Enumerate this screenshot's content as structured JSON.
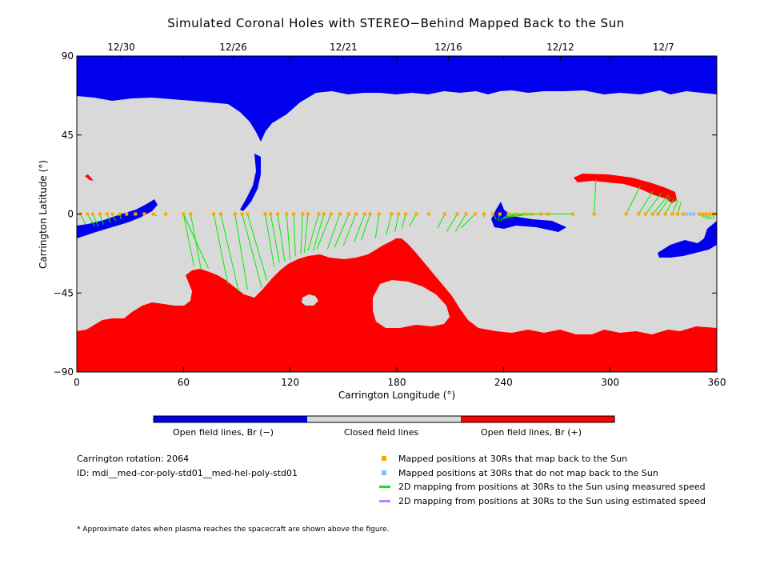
{
  "chart_data": {
    "type": "map",
    "title": "Simulated Coronal Holes with STEREO−Behind Mapped Back to the Sun",
    "xlabel": "Carrington Longitude (°)",
    "ylabel": "Carrington Latitude (°)",
    "xlim": [
      0,
      360
    ],
    "ylim": [
      -90,
      90
    ],
    "x_ticks": [
      "0",
      "60",
      "120",
      "180",
      "240",
      "300",
      "360"
    ],
    "y_ticks": [
      "90",
      "45",
      "0",
      "−45",
      "−90"
    ],
    "top_date_ticks": [
      {
        "lon": 25,
        "label": "12/30"
      },
      {
        "lon": 88,
        "label": "12/26"
      },
      {
        "lon": 150,
        "label": "12/21"
      },
      {
        "lon": 209,
        "label": "12/16"
      },
      {
        "lon": 272,
        "label": "12/12"
      },
      {
        "lon": 330,
        "label": "12/7"
      }
    ],
    "colors": {
      "open_negative": "#0000ee",
      "closed": "#d9d9d9",
      "open_positive": "#ff0000",
      "mapped": "#ffa500",
      "unmapped": "#87c0ff",
      "measured_speed": "#00ee00",
      "estimated_speed": "#c080ff"
    },
    "mapped_points_lon": [
      2,
      6,
      9,
      13,
      17,
      20,
      24,
      28,
      33,
      38,
      43,
      50,
      60,
      64,
      77,
      81,
      89,
      93,
      96,
      106,
      109,
      113,
      118,
      122,
      127,
      130,
      136,
      139,
      143,
      148,
      153,
      157,
      162,
      165,
      170,
      177,
      181,
      185,
      191,
      198,
      207,
      214,
      219,
      224,
      229,
      234,
      238,
      243,
      247,
      252,
      256,
      261,
      265,
      279,
      291,
      309,
      316,
      320,
      324,
      327,
      331,
      335,
      338,
      341,
      350,
      352,
      354,
      356,
      358,
      359
    ],
    "unmapped_points_lon": [
      343,
      345,
      347
    ],
    "mapping_lines": [
      {
        "from_lon": 2,
        "to_lon": 5,
        "to_lat": -6
      },
      {
        "from_lon": 6,
        "to_lon": 10,
        "to_lat": -7
      },
      {
        "from_lon": 9,
        "to_lon": 12,
        "to_lat": -7
      },
      {
        "from_lon": 13,
        "to_lon": 15,
        "to_lat": -6
      },
      {
        "from_lon": 17,
        "to_lon": 19,
        "to_lat": -5
      },
      {
        "from_lon": 20,
        "to_lon": 22,
        "to_lat": -4
      },
      {
        "from_lon": 24,
        "to_lon": 25,
        "to_lat": -3
      },
      {
        "from_lon": 43,
        "to_lon": 45,
        "to_lat": -1
      },
      {
        "from_lon": 60,
        "to_lon": 66,
        "to_lat": -30
      },
      {
        "from_lon": 64,
        "to_lon": 70,
        "to_lat": -32
      },
      {
        "from_lon": 60,
        "to_lon": 74,
        "to_lat": -31
      },
      {
        "from_lon": 77,
        "to_lon": 85,
        "to_lat": -40
      },
      {
        "from_lon": 81,
        "to_lon": 91,
        "to_lat": -44
      },
      {
        "from_lon": 89,
        "to_lon": 96,
        "to_lat": -43
      },
      {
        "from_lon": 93,
        "to_lon": 104,
        "to_lat": -42
      },
      {
        "from_lon": 96,
        "to_lon": 107,
        "to_lat": -38
      },
      {
        "from_lon": 106,
        "to_lon": 111,
        "to_lat": -30
      },
      {
        "from_lon": 109,
        "to_lon": 114,
        "to_lat": -28
      },
      {
        "from_lon": 113,
        "to_lon": 117,
        "to_lat": -27
      },
      {
        "from_lon": 118,
        "to_lon": 120,
        "to_lat": -26
      },
      {
        "from_lon": 122,
        "to_lon": 123,
        "to_lat": -24
      },
      {
        "from_lon": 127,
        "to_lon": 126,
        "to_lat": -23
      },
      {
        "from_lon": 130,
        "to_lon": 128,
        "to_lat": -22
      },
      {
        "from_lon": 136,
        "to_lon": 130,
        "to_lat": -21
      },
      {
        "from_lon": 139,
        "to_lon": 133,
        "to_lat": -21
      },
      {
        "from_lon": 143,
        "to_lon": 135,
        "to_lat": -20
      },
      {
        "from_lon": 148,
        "to_lon": 141,
        "to_lat": -20
      },
      {
        "from_lon": 153,
        "to_lon": 145,
        "to_lat": -19
      },
      {
        "from_lon": 157,
        "to_lon": 150,
        "to_lat": -18
      },
      {
        "from_lon": 162,
        "to_lon": 156,
        "to_lat": -16
      },
      {
        "from_lon": 165,
        "to_lon": 160,
        "to_lat": -15
      },
      {
        "from_lon": 170,
        "to_lon": 168,
        "to_lat": -14
      },
      {
        "from_lon": 177,
        "to_lon": 174,
        "to_lat": -12
      },
      {
        "from_lon": 181,
        "to_lon": 179,
        "to_lat": -10
      },
      {
        "from_lon": 185,
        "to_lon": 183,
        "to_lat": -8
      },
      {
        "from_lon": 191,
        "to_lon": 187,
        "to_lat": -7
      },
      {
        "from_lon": 207,
        "to_lon": 203,
        "to_lat": -8
      },
      {
        "from_lon": 214,
        "to_lon": 208,
        "to_lat": -10
      },
      {
        "from_lon": 219,
        "to_lon": 213,
        "to_lat": -10
      },
      {
        "from_lon": 224,
        "to_lon": 216,
        "to_lat": -8
      },
      {
        "from_lon": 229,
        "to_lon": 229,
        "to_lat": -2
      },
      {
        "from_lon": 234,
        "to_lon": 236,
        "to_lat": -3
      },
      {
        "from_lon": 238,
        "to_lon": 237,
        "to_lat": -4
      },
      {
        "from_lon": 243,
        "to_lon": 238,
        "to_lat": -4
      },
      {
        "from_lon": 247,
        "to_lon": 239,
        "to_lat": -3
      },
      {
        "from_lon": 252,
        "to_lon": 240,
        "to_lat": -2
      },
      {
        "from_lon": 256,
        "to_lon": 241,
        "to_lat": -2
      },
      {
        "from_lon": 261,
        "to_lon": 242,
        "to_lat": -1
      },
      {
        "from_lon": 279,
        "to_lon": 241,
        "to_lat": 0
      },
      {
        "from_lon": 291,
        "to_lon": 292,
        "to_lat": 20
      },
      {
        "from_lon": 309,
        "to_lon": 317,
        "to_lat": 16
      },
      {
        "from_lon": 316,
        "to_lon": 324,
        "to_lat": 13
      },
      {
        "from_lon": 320,
        "to_lon": 329,
        "to_lat": 12
      },
      {
        "from_lon": 324,
        "to_lon": 333,
        "to_lat": 11
      },
      {
        "from_lon": 327,
        "to_lon": 334,
        "to_lat": 10
      },
      {
        "from_lon": 331,
        "to_lon": 336,
        "to_lat": 9
      },
      {
        "from_lon": 335,
        "to_lon": 338,
        "to_lat": 8
      },
      {
        "from_lon": 338,
        "to_lon": 340,
        "to_lat": 7
      },
      {
        "from_lon": 350,
        "to_lon": 353,
        "to_lat": -2
      },
      {
        "from_lon": 352,
        "to_lon": 355,
        "to_lat": -3
      },
      {
        "from_lon": 354,
        "to_lon": 356,
        "to_lat": -3
      },
      {
        "from_lon": 356,
        "to_lon": 357,
        "to_lat": -3
      },
      {
        "from_lon": 358,
        "to_lon": 358,
        "to_lat": -3
      }
    ]
  },
  "colorbar": {
    "labels": [
      "Open field lines, Br (−)",
      "Closed field lines",
      "Open field lines, Br (+)"
    ]
  },
  "info": {
    "rotation": "Carrington rotation: 2064",
    "id": "ID: mdi__med-cor-poly-std01__med-hel-poly-std01"
  },
  "legend": {
    "mapped": "Mapped positions at 30Rs that map back to the Sun",
    "unmapped": "Mapped positions at 30Rs that do not map back to the Sun",
    "measured": "2D mapping from positions at 30Rs to the Sun using measured speed",
    "estimated": "2D mapping from positions at 30Rs to the Sun using estimated speed"
  },
  "footnote": "* Approximate dates when plasma reaches the spacecraft are shown above the figure."
}
